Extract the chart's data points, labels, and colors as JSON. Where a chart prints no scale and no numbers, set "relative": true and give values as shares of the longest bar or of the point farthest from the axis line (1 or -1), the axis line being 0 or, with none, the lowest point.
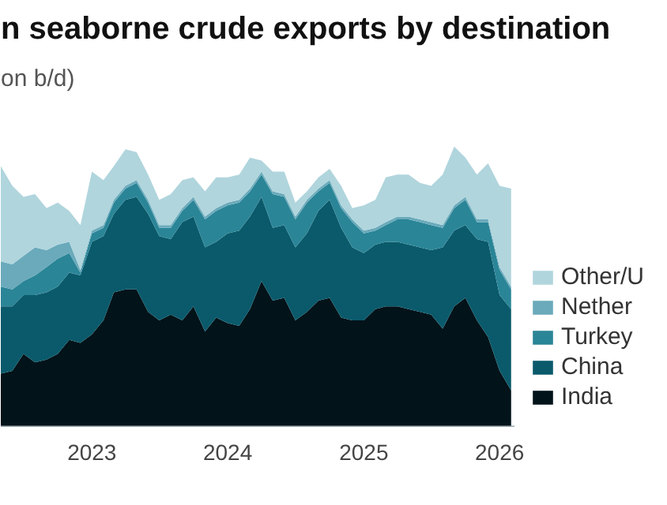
{
  "chart_data": {
    "type": "area",
    "title": "n seaborne crude exports by destination",
    "subtitle": "on b/d)",
    "relative": true,
    "stacked": true,
    "legend": "right",
    "grid": false,
    "x": [
      "2022-05",
      "2022-06",
      "2022-07",
      "2022-08",
      "2022-09",
      "2022-10",
      "2022-11",
      "2022-12",
      "2023-01",
      "2023-02",
      "2023-03",
      "2023-04",
      "2023-05",
      "2023-06",
      "2023-07",
      "2023-08",
      "2023-09",
      "2023-10",
      "2023-11",
      "2023-12",
      "2024-01",
      "2024-02",
      "2024-03",
      "2024-04",
      "2024-05",
      "2024-06",
      "2024-07",
      "2024-08",
      "2024-09",
      "2024-10",
      "2024-11",
      "2024-12",
      "2025-01",
      "2025-02",
      "2025-03",
      "2025-04",
      "2025-05",
      "2025-06",
      "2025-07",
      "2025-08",
      "2025-09",
      "2025-10",
      "2025-11",
      "2025-12",
      "2026-01",
      "2026-02"
    ],
    "xlim": [
      "2022-05-01",
      "2026-02-10"
    ],
    "xticks": [
      {
        "value": "2023-01-01",
        "label": "2023"
      },
      {
        "value": "2024-01-01",
        "label": "2024"
      },
      {
        "value": "2025-01-01",
        "label": "2025"
      },
      {
        "value": "2026-01-01",
        "label": "2026"
      }
    ],
    "series": [
      {
        "name": "India",
        "color": "#03131a",
        "values": [
          0.19,
          0.2,
          0.26,
          0.23,
          0.24,
          0.26,
          0.31,
          0.3,
          0.33,
          0.38,
          0.48,
          0.49,
          0.49,
          0.41,
          0.38,
          0.4,
          0.38,
          0.43,
          0.34,
          0.39,
          0.37,
          0.36,
          0.42,
          0.52,
          0.45,
          0.46,
          0.38,
          0.41,
          0.45,
          0.46,
          0.39,
          0.38,
          0.38,
          0.42,
          0.43,
          0.43,
          0.42,
          0.41,
          0.4,
          0.35,
          0.43,
          0.46,
          0.38,
          0.32,
          0.2,
          0.13
        ]
      },
      {
        "name": "China",
        "color": "#0a5a6b",
        "values": [
          0.24,
          0.23,
          0.21,
          0.24,
          0.24,
          0.24,
          0.24,
          0.24,
          0.33,
          0.3,
          0.28,
          0.32,
          0.33,
          0.35,
          0.3,
          0.27,
          0.35,
          0.32,
          0.3,
          0.27,
          0.32,
          0.34,
          0.33,
          0.3,
          0.26,
          0.26,
          0.26,
          0.28,
          0.32,
          0.35,
          0.32,
          0.26,
          0.24,
          0.23,
          0.23,
          0.23,
          0.23,
          0.23,
          0.23,
          0.29,
          0.27,
          0.26,
          0.29,
          0.34,
          0.27,
          0.29
        ]
      },
      {
        "name": "Turkey",
        "color": "#2a8597",
        "values": [
          0.07,
          0.06,
          0.05,
          0.07,
          0.09,
          0.1,
          0.07,
          0.01,
          0.03,
          0.03,
          0.04,
          0.04,
          0.05,
          0.04,
          0.03,
          0.04,
          0.04,
          0.06,
          0.1,
          0.11,
          0.1,
          0.1,
          0.09,
          0.08,
          0.12,
          0.1,
          0.1,
          0.11,
          0.07,
          0.06,
          0.07,
          0.09,
          0.07,
          0.05,
          0.06,
          0.08,
          0.09,
          0.09,
          0.09,
          0.07,
          0.08,
          0.09,
          0.06,
          0.07,
          0.09,
          0.07
        ]
      },
      {
        "name": "Nether",
        "color": "#6aaabb",
        "values": [
          0.09,
          0.09,
          0.09,
          0.1,
          0.06,
          0.05,
          0.04,
          0.01,
          0.01,
          0.01,
          0.01,
          0.01,
          0.01,
          0.01,
          0.01,
          0.01,
          0.01,
          0.01,
          0.01,
          0.01,
          0.01,
          0.01,
          0.01,
          0.01,
          0.01,
          0.01,
          0.01,
          0.01,
          0.01,
          0.01,
          0.01,
          0.01,
          0.01,
          0.01,
          0.01,
          0.01,
          0.01,
          0.01,
          0.01,
          0.01,
          0.01,
          0.01,
          0.01,
          0.01,
          0.01,
          0.01
        ]
      },
      {
        "name": "Other/U",
        "color": "#b0d5dd",
        "values": [
          0.34,
          0.28,
          0.21,
          0.19,
          0.15,
          0.15,
          0.11,
          0.16,
          0.21,
          0.16,
          0.12,
          0.13,
          0.1,
          0.09,
          0.09,
          0.11,
          0.1,
          0.07,
          0.09,
          0.11,
          0.09,
          0.09,
          0.11,
          0.04,
          0.07,
          0.08,
          0.05,
          0.03,
          0.04,
          0.04,
          0.07,
          0.04,
          0.09,
          0.1,
          0.16,
          0.15,
          0.15,
          0.13,
          0.13,
          0.18,
          0.21,
          0.14,
          0.16,
          0.2,
          0.29,
          0.35
        ]
      }
    ]
  }
}
